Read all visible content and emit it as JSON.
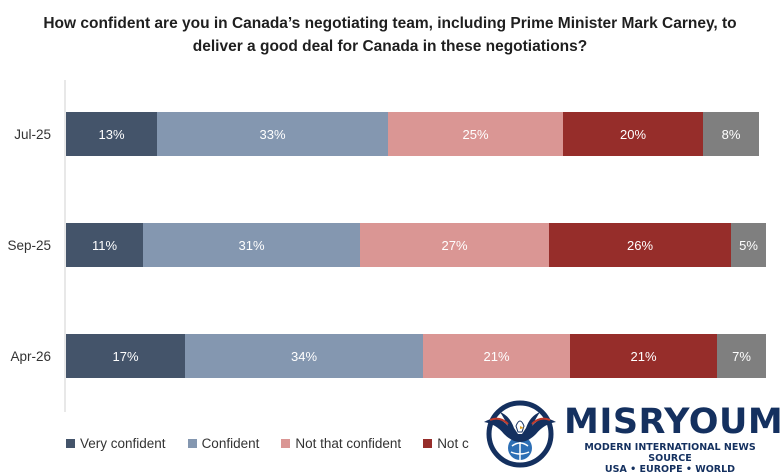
{
  "chart_data": {
    "type": "bar",
    "orientation": "horizontal",
    "stacked": true,
    "title": "How confident are you in Canada’s negotiating team, including Prime Minister Mark Carney, to deliver a good deal for Canada in these negotiations?",
    "categories": [
      "Jul-25",
      "Sep-25",
      "Apr-26"
    ],
    "series": [
      {
        "name": "Very confident",
        "color": "#44546a",
        "values": [
          13,
          11,
          17
        ],
        "labels": [
          "13%",
          "11%",
          "17%"
        ]
      },
      {
        "name": "Confident",
        "color": "#8497b0",
        "values": [
          33,
          31,
          34
        ],
        "labels": [
          "33%",
          "31%",
          "34%"
        ]
      },
      {
        "name": "Not that confident",
        "color": "#da9694",
        "values": [
          25,
          27,
          21
        ],
        "labels": [
          "25%",
          "27%",
          "21%"
        ]
      },
      {
        "name": "Not at all confident",
        "legend_visible_text": "Not c",
        "color": "#962d2a",
        "values": [
          20,
          26,
          21
        ],
        "labels": [
          "20%",
          "26%",
          "21%"
        ]
      },
      {
        "name": "",
        "color": "#7f7f7f",
        "values": [
          8,
          5,
          7
        ],
        "labels": [
          "8%",
          "5%",
          "7%"
        ]
      }
    ],
    "xlim": [
      0,
      100
    ],
    "grid": false,
    "legend_position": "bottom-left"
  },
  "logo": {
    "name": "MISRYOUM",
    "tagline_1": "MODERN INTERNATIONAL NEWS SOURCE",
    "tagline_2": "USA • EUROPE • WORLD"
  }
}
